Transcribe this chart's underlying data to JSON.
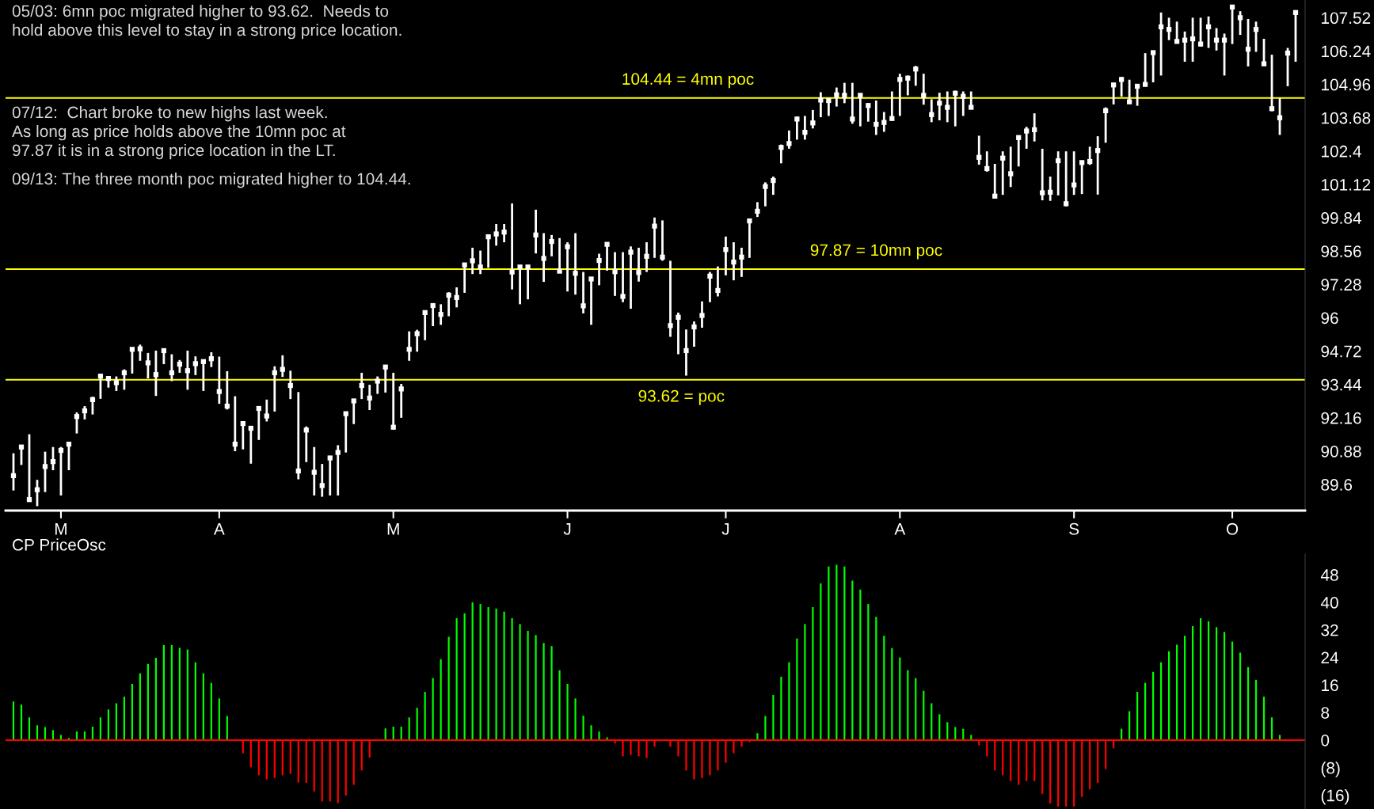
{
  "chart_data": [
    {
      "type": "scatter",
      "color": "#ffffff",
      "marker": "square",
      "categories": [
        null,
        null,
        null,
        null,
        null,
        null,
        "M",
        null,
        null,
        null,
        null,
        null,
        null,
        null,
        null,
        null,
        null,
        null,
        null,
        null,
        null,
        null,
        null,
        null,
        null,
        null,
        "A",
        null,
        null,
        null,
        null,
        null,
        null,
        null,
        null,
        null,
        null,
        null,
        null,
        null,
        null,
        null,
        null,
        null,
        null,
        null,
        null,
        null,
        "M",
        null,
        null,
        null,
        null,
        null,
        null,
        null,
        null,
        null,
        null,
        null,
        null,
        null,
        null,
        null,
        null,
        null,
        null,
        null,
        null,
        null,
        "J",
        null,
        null,
        null,
        null,
        null,
        null,
        null,
        null,
        null,
        null,
        null,
        null,
        null,
        null,
        null,
        null,
        null,
        null,
        null,
        "J",
        null,
        null,
        null,
        null,
        null,
        null,
        null,
        null,
        null,
        null,
        null,
        null,
        null,
        null,
        null,
        null,
        null,
        null,
        null,
        null,
        null,
        "A",
        null,
        null,
        null,
        null,
        null,
        null,
        null,
        null,
        null,
        null,
        null,
        null,
        null,
        null,
        null,
        null,
        null,
        null,
        null,
        null,
        null,
        "S",
        null,
        null,
        null,
        null,
        null,
        null,
        null,
        null,
        null,
        null,
        null,
        null,
        null,
        null,
        null,
        null,
        null,
        null,
        null,
        "O",
        null,
        null,
        null,
        null,
        null,
        null,
        null,
        null
      ],
      "values": [
        89.94,
        91.04,
        89.02,
        89.4,
        90.29,
        90.48,
        90.91,
        91.15,
        92.21,
        92.43,
        92.86,
        93.76,
        93.67,
        93.51,
        93.89,
        94.79,
        94.81,
        94.27,
        93.82,
        94.74,
        93.89,
        94.22,
        93.97,
        94.24,
        94.32,
        94.43,
        93.17,
        92.61,
        91.15,
        91.94,
        91.76,
        92.52,
        92.23,
        93.89,
        94.02,
        93.4,
        90.12,
        91.69,
        90.07,
        89.56,
        90.62,
        90.83,
        92.32,
        92.81,
        93.4,
        92.92,
        93.57,
        94.11,
        91.8,
        93.27,
        94.79,
        95.39,
        96.2,
        96.47,
        96.13,
        96.87,
        96.78,
        98.03,
        98.19,
        97.95,
        99.11,
        99.22,
        99.29,
        97.76,
        97.95,
        97.95,
        99.18,
        98.28,
        98.93,
        97.79,
        98.73,
        97.71,
        96.46,
        97.49,
        98.2,
        98.82,
        97.77,
        96.82,
        98.52,
        97.74,
        98.36,
        99.52,
        98.33,
        95.7,
        96.02,
        94.74,
        95.65,
        96.09,
        97.6,
        97.05,
        98.62,
        98.14,
        98.33,
        99.72,
        100.09,
        101.04,
        101.27,
        102.54,
        102.69,
        103.63,
        103.12,
        103.48,
        104.36,
        104.34,
        104.56,
        104.54,
        103.63,
        104.54,
        104.15,
        103.43,
        103.5,
        103.65,
        105.15,
        105.2,
        105.55,
        104.54,
        103.8,
        104.24,
        104.08,
        104.62,
        104.5,
        104.08,
        102.16,
        101.73,
        100.67,
        102.13,
        101.53,
        102.92,
        103.17,
        103.22,
        100.8,
        100.82,
        102.03,
        100.38,
        101.1,
        101.96,
        102.0,
        102.42,
        103.95,
        104.94,
        105.15,
        104.29,
        104.89,
        104.96,
        106.18,
        107.17,
        107.07,
        106.61,
        106.66,
        106.71,
        106.51,
        107.17,
        106.66,
        106.66,
        107.93,
        107.52,
        106.31,
        107.07,
        105.75,
        104.03,
        103.68,
        106.16,
        107.72
      ],
      "errors": [
        [
          89.37,
          90.8
        ],
        [
          90.35,
          91.04
        ],
        [
          88.94,
          91.53
        ],
        [
          88.77,
          89.78
        ],
        [
          89.31,
          90.86
        ],
        [
          90.15,
          91.04
        ],
        [
          89.18,
          91.04
        ],
        [
          90.15,
          91.15
        ],
        [
          91.56,
          92.37
        ],
        [
          92.1,
          92.61
        ],
        [
          92.29,
          92.97
        ],
        [
          92.89,
          93.76
        ],
        [
          93.32,
          93.75
        ],
        [
          93.19,
          93.75
        ],
        [
          93.24,
          94.02
        ],
        [
          93.86,
          94.79
        ],
        [
          94.35,
          94.97
        ],
        [
          93.67,
          94.65
        ],
        [
          93.0,
          94.74
        ],
        [
          94.22,
          94.74
        ],
        [
          93.57,
          94.6
        ],
        [
          93.89,
          94.38
        ],
        [
          93.24,
          94.74
        ],
        [
          93.8,
          94.52
        ],
        [
          93.19,
          94.38
        ],
        [
          94.11,
          94.68
        ],
        [
          92.7,
          94.51
        ],
        [
          92.48,
          93.95
        ],
        [
          90.88,
          92.99
        ],
        [
          90.95,
          91.94
        ],
        [
          90.4,
          91.78
        ],
        [
          91.31,
          92.54
        ],
        [
          92.02,
          92.86
        ],
        [
          92.4,
          94.14
        ],
        [
          93.73,
          94.56
        ],
        [
          92.88,
          93.97
        ],
        [
          89.8,
          93.15
        ],
        [
          90.46,
          91.83
        ],
        [
          89.18,
          91.04
        ],
        [
          89.13,
          90.39
        ],
        [
          89.18,
          90.7
        ],
        [
          89.18,
          91.11
        ],
        [
          90.83,
          92.37
        ],
        [
          91.92,
          92.86
        ],
        [
          92.88,
          93.89
        ],
        [
          92.46,
          93.43
        ],
        [
          93.08,
          93.75
        ],
        [
          93.13,
          94.14
        ],
        [
          91.72,
          93.89
        ],
        [
          92.16,
          93.46
        ],
        [
          94.35,
          95.48
        ],
        [
          94.7,
          95.54
        ],
        [
          95.14,
          96.2
        ],
        [
          95.68,
          96.47
        ],
        [
          95.73,
          96.52
        ],
        [
          96.06,
          96.98
        ],
        [
          96.4,
          97.17
        ],
        [
          96.96,
          98.08
        ],
        [
          97.68,
          98.69
        ],
        [
          97.68,
          98.58
        ],
        [
          97.92,
          99.12
        ],
        [
          98.77,
          99.6
        ],
        [
          98.9,
          99.6
        ],
        [
          97.09,
          100.39
        ],
        [
          96.52,
          97.97
        ],
        [
          96.71,
          97.97
        ],
        [
          98.47,
          100.15
        ],
        [
          97.38,
          99.25
        ],
        [
          98.36,
          99.18
        ],
        [
          97.76,
          99.06
        ],
        [
          97.01,
          98.9
        ],
        [
          96.89,
          99.25
        ],
        [
          96.17,
          97.76
        ],
        [
          95.73,
          97.49
        ],
        [
          97.25,
          98.46
        ],
        [
          97.81,
          98.82
        ],
        [
          96.84,
          98.52
        ],
        [
          96.6,
          98.52
        ],
        [
          96.35,
          98.74
        ],
        [
          97.39,
          98.69
        ],
        [
          97.76,
          98.9
        ],
        [
          98.3,
          99.85
        ],
        [
          98.19,
          99.74
        ],
        [
          95.27,
          98.19
        ],
        [
          94.6,
          96.2
        ],
        [
          93.78,
          95.55
        ],
        [
          94.89,
          95.86
        ],
        [
          95.62,
          96.63
        ],
        [
          96.6,
          97.76
        ],
        [
          96.82,
          97.97
        ],
        [
          97.63,
          99.12
        ],
        [
          97.44,
          98.9
        ],
        [
          97.57,
          98.69
        ],
        [
          98.3,
          99.79
        ],
        [
          99.87,
          100.44
        ],
        [
          100.28,
          101.2
        ],
        [
          100.72,
          101.42
        ],
        [
          101.93,
          102.65
        ],
        [
          102.49,
          103.19
        ],
        [
          102.84,
          103.73
        ],
        [
          102.84,
          103.75
        ],
        [
          103.27,
          103.98
        ],
        [
          103.7,
          104.66
        ],
        [
          103.75,
          104.36
        ],
        [
          104.11,
          104.84
        ],
        [
          104.24,
          105.02
        ],
        [
          103.45,
          105.02
        ],
        [
          103.35,
          104.52
        ],
        [
          103.53,
          104.24
        ],
        [
          103.02,
          104.34
        ],
        [
          103.14,
          103.9
        ],
        [
          103.65,
          104.69
        ],
        [
          103.75,
          105.37
        ],
        [
          104.54,
          105.3
        ],
        [
          104.91,
          105.67
        ],
        [
          104.18,
          105.37
        ],
        [
          103.51,
          104.39
        ],
        [
          103.58,
          104.64
        ],
        [
          103.51,
          104.69
        ],
        [
          103.35,
          104.72
        ],
        [
          103.75,
          104.69
        ],
        [
          104.01,
          104.69
        ],
        [
          101.88,
          102.99
        ],
        [
          101.61,
          102.39
        ],
        [
          100.62,
          101.91
        ],
        [
          100.72,
          102.39
        ],
        [
          101.02,
          102.57
        ],
        [
          101.81,
          102.99
        ],
        [
          102.49,
          103.33
        ],
        [
          102.77,
          103.85
        ],
        [
          100.51,
          102.49
        ],
        [
          100.49,
          101.42
        ],
        [
          100.7,
          102.39
        ],
        [
          100.28,
          102.39
        ],
        [
          100.72,
          102.39
        ],
        [
          100.75,
          102.03
        ],
        [
          101.87,
          102.57
        ],
        [
          100.73,
          102.97
        ],
        [
          102.72,
          104.08
        ],
        [
          104.19,
          104.94
        ],
        [
          104.49,
          105.25
        ],
        [
          104.29,
          105.14
        ],
        [
          104.14,
          104.89
        ],
        [
          104.89,
          106.16
        ],
        [
          105.04,
          106.18
        ],
        [
          105.3,
          107.72
        ],
        [
          106.66,
          107.52
        ],
        [
          106.56,
          107.37
        ],
        [
          105.83,
          106.99
        ],
        [
          105.83,
          107.52
        ],
        [
          106.41,
          107.52
        ],
        [
          106.36,
          107.57
        ],
        [
          106.26,
          107.12
        ],
        [
          105.3,
          106.91
        ],
        [
          106.51,
          107.98
        ],
        [
          106.86,
          107.77
        ],
        [
          105.65,
          107.47
        ],
        [
          106.21,
          107.37
        ],
        [
          105.75,
          106.71
        ],
        [
          103.93,
          106.1
        ],
        [
          103.02,
          104.44
        ],
        [
          104.89,
          106.36
        ],
        [
          105.83,
          107.77
        ]
      ],
      "ylim": [
        88.6,
        108.2
      ],
      "yticks": [
        89.6,
        90.88,
        92.16,
        93.44,
        94.72,
        96,
        97.28,
        98.56,
        99.84,
        101.12,
        102.4,
        103.68,
        104.96,
        106.24,
        107.52
      ],
      "ref_lines": [
        {
          "axis": "y",
          "value": 104.44,
          "label": "104.44 = 4mn poc",
          "color": "#ffff00"
        },
        {
          "axis": "y",
          "value": 97.87,
          "label": "97.87 = 10mn poc",
          "color": "#ffff00"
        },
        {
          "axis": "y",
          "value": 93.62,
          "label": "93.62 = poc",
          "color": "#ffff00"
        }
      ],
      "annotations": [
        "05/03: 6mn poc migrated higher to 93.62.  Needs to\nhold above this level to stay in a strong price location.",
        "07/12:  Chart broke to new highs last week.\nAs long as price holds above the 10mn poc at\n97.87 it is in a strong price location in the LT.",
        "09/13: The three month poc migrated higher to 104.44."
      ]
    },
    {
      "type": "bar",
      "title": "CP PriceOsc",
      "categories": [
        null,
        null,
        null,
        null,
        null,
        null,
        null,
        null,
        null,
        null,
        null,
        null,
        null,
        null,
        null,
        null,
        null,
        null,
        null,
        null,
        null,
        null,
        null,
        null,
        null,
        null,
        null,
        null,
        null,
        null,
        null,
        null,
        null,
        null,
        null,
        null,
        null,
        null,
        null,
        null,
        null,
        null,
        null,
        null,
        null,
        null,
        null,
        null,
        null,
        null,
        null,
        null,
        null,
        null,
        null,
        null,
        null,
        null,
        null,
        null,
        null,
        null,
        null,
        null,
        null,
        null,
        null,
        null,
        null,
        null,
        null,
        null,
        null,
        null,
        null,
        null,
        null,
        null,
        null,
        null,
        null,
        null,
        null,
        null,
        null,
        null,
        null,
        null,
        null,
        null,
        null,
        null,
        null,
        null,
        null,
        null,
        null,
        null,
        null,
        null,
        null,
        null,
        null,
        null,
        null,
        null,
        null,
        null,
        null,
        null,
        null,
        null,
        null,
        null,
        null,
        null,
        null,
        null,
        null,
        null,
        null,
        null,
        null,
        null,
        null,
        null,
        null,
        null,
        null,
        null,
        null,
        null,
        null,
        null,
        null,
        null,
        null,
        null,
        null,
        null,
        null,
        null,
        null,
        null,
        null,
        null,
        null,
        null,
        null,
        null,
        null,
        null,
        null,
        null,
        null,
        null,
        null,
        null,
        null,
        null,
        null,
        null,
        null
      ],
      "values": [
        11.2,
        10.3,
        6.6,
        4.3,
        3.8,
        2.9,
        1.5,
        0.6,
        2.5,
        2.5,
        3.9,
        6.6,
        8.9,
        10.7,
        12.6,
        16.3,
        19.4,
        22.1,
        23.9,
        27.6,
        27.6,
        26.8,
        26.3,
        22.6,
        19.4,
        16.6,
        12.1,
        7.0,
        0,
        -3.8,
        -7.9,
        -10.2,
        -11.4,
        -11.0,
        -10.2,
        -9.8,
        -12.3,
        -12.4,
        -14.9,
        -17.8,
        -17.8,
        -18.3,
        -16.1,
        -13.0,
        -8.8,
        -5.1,
        0,
        3.4,
        3.9,
        3.9,
        6.6,
        9.4,
        14.0,
        18.0,
        23.5,
        30.0,
        35.4,
        36.8,
        40.0,
        39.5,
        38.6,
        38.2,
        37.3,
        35.4,
        33.7,
        31.7,
        30.5,
        28.2,
        27.3,
        20.3,
        16.3,
        12.1,
        7.1,
        4.3,
        2.5,
        0.8,
        -1.0,
        -4.7,
        -4.3,
        -4.7,
        -5.2,
        -1.9,
        0,
        -1.9,
        -4.7,
        -8.8,
        -11.4,
        -11.0,
        -10.2,
        -8.8,
        -6.6,
        -3.8,
        -1.9,
        -0.6,
        2.0,
        7.0,
        13.1,
        18.4,
        22.6,
        29.5,
        33.7,
        38.6,
        45.5,
        50.4,
        50.9,
        50.4,
        46.3,
        43.7,
        39.5,
        35.8,
        30.3,
        26.7,
        24.0,
        20.3,
        18.0,
        14.3,
        10.7,
        7.5,
        5.2,
        3.8,
        3.3,
        1.5,
        -1.5,
        -4.7,
        -8.8,
        -10.2,
        -11.9,
        -13.0,
        -11.9,
        -11.9,
        -15.6,
        -18.4,
        -19.3,
        -19.3,
        -19.3,
        -16.5,
        -14.3,
        -12.4,
        -8.4,
        -2.4,
        3.3,
        8.4,
        14.0,
        16.6,
        19.8,
        22.6,
        25.8,
        27.7,
        30.3,
        33.1,
        35.4,
        34.5,
        32.8,
        31.4,
        28.6,
        25.4,
        21.2,
        17.5,
        12.6,
        6.6,
        1.5,
        null,
        null
      ],
      "colors": [
        "#00ff00",
        "#00ff00",
        "#00ff00",
        "#00ff00",
        "#00ff00",
        "#00ff00",
        "#00ff00",
        "#00ff00",
        "#00ff00",
        "#00ff00",
        "#00ff00",
        "#00ff00",
        "#00ff00",
        "#00ff00",
        "#00ff00",
        "#00ff00",
        "#00ff00",
        "#00ff00",
        "#00ff00",
        "#00ff00",
        "#00ff00",
        "#00ff00",
        "#00ff00",
        "#00ff00",
        "#00ff00",
        "#00ff00",
        "#00ff00",
        "#00ff00",
        "#ff0000",
        "#ff0000",
        "#ff0000",
        "#ff0000",
        "#ff0000",
        "#ff0000",
        "#ff0000",
        "#ff0000",
        "#ff0000",
        "#ff0000",
        "#ff0000",
        "#ff0000",
        "#ff0000",
        "#ff0000",
        "#ff0000",
        "#ff0000",
        "#ff0000",
        "#ff0000",
        "#ff0000",
        "#00ff00",
        "#00ff00",
        "#00ff00",
        "#00ff00",
        "#00ff00",
        "#00ff00",
        "#00ff00",
        "#00ff00",
        "#00ff00",
        "#00ff00",
        "#00ff00",
        "#00ff00",
        "#00ff00",
        "#00ff00",
        "#00ff00",
        "#00ff00",
        "#00ff00",
        "#00ff00",
        "#00ff00",
        "#00ff00",
        "#00ff00",
        "#00ff00",
        "#00ff00",
        "#00ff00",
        "#00ff00",
        "#00ff00",
        "#00ff00",
        "#00ff00",
        "#00ff00",
        "#ff0000",
        "#ff0000",
        "#ff0000",
        "#ff0000",
        "#ff0000",
        "#ff0000",
        "#ff0000",
        "#ff0000",
        "#ff0000",
        "#ff0000",
        "#ff0000",
        "#ff0000",
        "#ff0000",
        "#ff0000",
        "#ff0000",
        "#ff0000",
        "#ff0000",
        "#ff0000",
        "#00ff00",
        "#00ff00",
        "#00ff00",
        "#00ff00",
        "#00ff00",
        "#00ff00",
        "#00ff00",
        "#00ff00",
        "#00ff00",
        "#00ff00",
        "#00ff00",
        "#00ff00",
        "#00ff00",
        "#00ff00",
        "#00ff00",
        "#00ff00",
        "#00ff00",
        "#00ff00",
        "#00ff00",
        "#00ff00",
        "#00ff00",
        "#00ff00",
        "#00ff00",
        "#00ff00",
        "#00ff00",
        "#00ff00",
        "#00ff00",
        "#00ff00",
        "#ff0000",
        "#ff0000",
        "#ff0000",
        "#ff0000",
        "#ff0000",
        "#ff0000",
        "#ff0000",
        "#ff0000",
        "#ff0000",
        "#ff0000",
        "#ff0000",
        "#ff0000",
        "#ff0000",
        "#ff0000",
        "#ff0000",
        "#ff0000",
        "#ff0000",
        "#ff0000",
        "#00ff00",
        "#00ff00",
        "#00ff00",
        "#00ff00",
        "#00ff00",
        "#00ff00",
        "#00ff00",
        "#00ff00",
        "#00ff00",
        "#00ff00",
        "#00ff00",
        "#00ff00",
        "#00ff00",
        "#00ff00",
        "#00ff00",
        "#00ff00",
        "#00ff00",
        "#00ff00",
        "#00ff00",
        "#00ff00",
        "#00ff00",
        "#ff0000",
        "#ff0000"
      ],
      "ylim": [
        -20,
        54
      ],
      "yticks": [
        48,
        40,
        32,
        24,
        16,
        8,
        0,
        {
          "value": -8,
          "label": "(8)"
        },
        {
          "value": -16,
          "label": "(16)"
        }
      ],
      "ref_lines": [
        {
          "axis": "y",
          "value": 0,
          "color": "#ff0000"
        }
      ]
    }
  ]
}
